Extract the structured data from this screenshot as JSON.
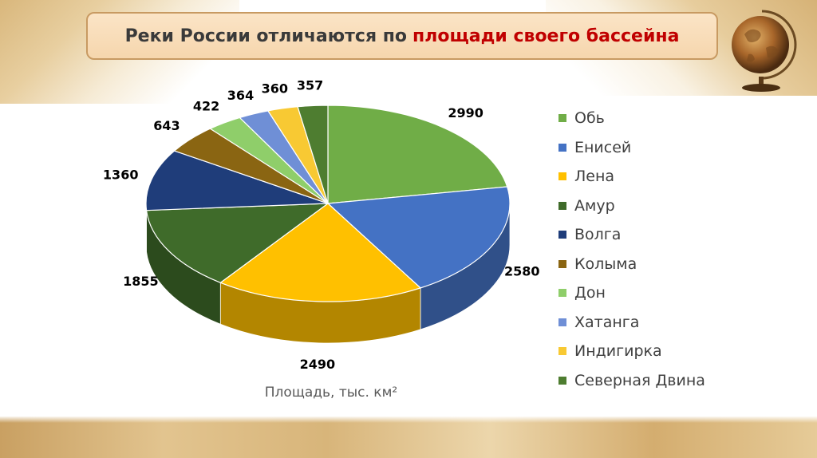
{
  "title": {
    "prefix": "Реки России отличаются по",
    "highlight": "площади своего бассейна"
  },
  "colors": {
    "title_highlight": "#c00000",
    "title_box_border": "#c89a62"
  },
  "chart_data": {
    "type": "pie",
    "style": "3d",
    "title": "",
    "xlabel": "Площадь, тыс. км²",
    "legend_position": "right",
    "categories": [
      "Обь",
      "Енисей",
      "Лена",
      "Амур",
      "Волга",
      "Колыма",
      "Дон",
      "Хатанга",
      "Индигирка",
      "Северная Двина"
    ],
    "values": [
      2990,
      2580,
      2490,
      1855,
      1360,
      643,
      422,
      364,
      360,
      357
    ],
    "colors": [
      "#70ad47",
      "#4472c4",
      "#ffc000",
      "#3f6b2a",
      "#1f3d7a",
      "#8a6512",
      "#8fce6a",
      "#6f8fd6",
      "#f8c933",
      "#4e7d30"
    ]
  }
}
